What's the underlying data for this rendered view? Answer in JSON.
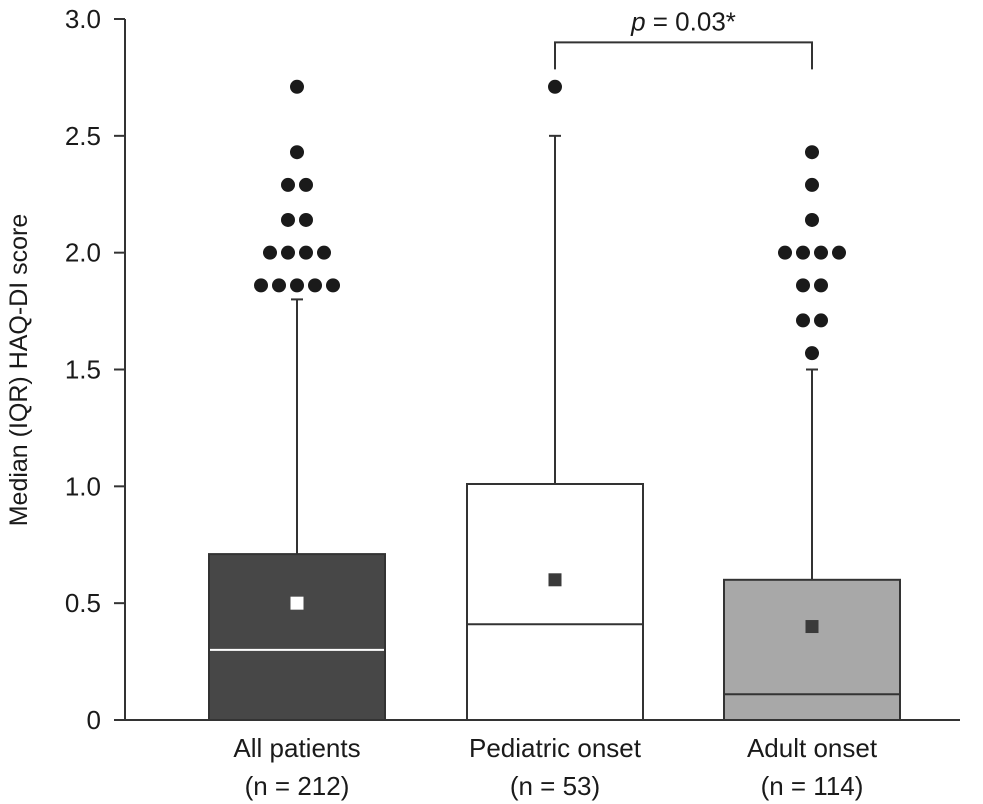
{
  "chart_data": {
    "type": "box",
    "ylabel": "Median (IQR) HAQ-DI score",
    "ylim": [
      0,
      3.0
    ],
    "yticks": [
      {
        "value": 0,
        "label": "0"
      },
      {
        "value": 0.5,
        "label": "0.5"
      },
      {
        "value": 1.0,
        "label": "1.0"
      },
      {
        "value": 1.5,
        "label": "1.5"
      },
      {
        "value": 2.0,
        "label": "2.0"
      },
      {
        "value": 2.5,
        "label": "2.5"
      },
      {
        "value": 3.0,
        "label": "3.0"
      }
    ],
    "grid": false,
    "groups": [
      {
        "label": "All patients",
        "n_label": "(n = 212)",
        "fill": "#474747",
        "median_color": "#ffffff",
        "mean_color": "#ffffff",
        "q1": 0,
        "median": 0.3,
        "q3": 0.71,
        "mean": 0.5,
        "whisker_low": 0,
        "whisker_high": 1.8,
        "outliers": [
          {
            "y": 2.71,
            "count": 1
          },
          {
            "y": 2.43,
            "count": 1
          },
          {
            "y": 2.29,
            "count": 2
          },
          {
            "y": 2.14,
            "count": 2
          },
          {
            "y": 2.0,
            "count": 4
          },
          {
            "y": 1.86,
            "count": 5
          }
        ]
      },
      {
        "label": "Pediatric onset",
        "n_label": "(n = 53)",
        "fill": "#ffffff",
        "median_color": "#333333",
        "mean_color": "#3a3a3a",
        "q1": 0,
        "median": 0.41,
        "q3": 1.01,
        "mean": 0.6,
        "whisker_low": 0,
        "whisker_high": 2.5,
        "outliers": [
          {
            "y": 2.71,
            "count": 1
          }
        ]
      },
      {
        "label": "Adult onset",
        "n_label": "(n = 114)",
        "fill": "#a8a8a8",
        "median_color": "#333333",
        "mean_color": "#3a3a3a",
        "q1": 0,
        "median": 0.11,
        "q3": 0.6,
        "mean": 0.4,
        "whisker_low": 0,
        "whisker_high": 1.5,
        "outliers": [
          {
            "y": 2.43,
            "count": 1
          },
          {
            "y": 2.29,
            "count": 1
          },
          {
            "y": 2.14,
            "count": 1
          },
          {
            "y": 2.0,
            "count": 4
          },
          {
            "y": 1.86,
            "count": 2
          },
          {
            "y": 1.71,
            "count": 2
          },
          {
            "y": 1.57,
            "count": 1
          }
        ]
      }
    ],
    "annotations": [
      {
        "text_italic": "p",
        "text": " = 0.03*",
        "from_group": 1,
        "to_group": 2,
        "y": 2.99
      }
    ]
  }
}
